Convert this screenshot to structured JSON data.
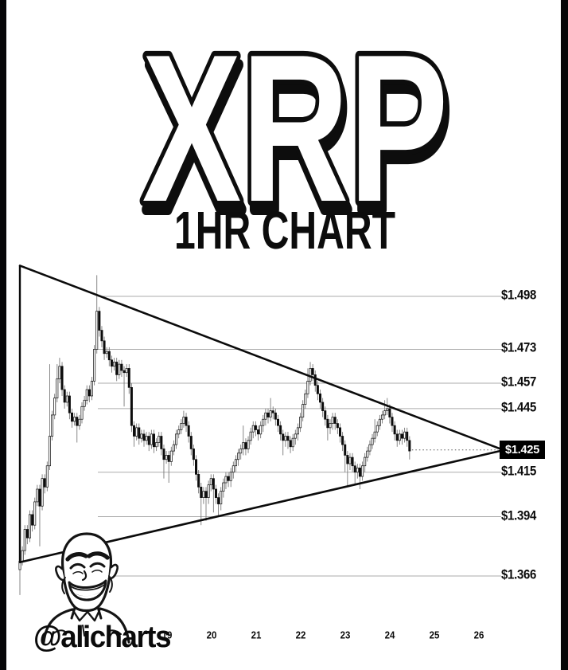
{
  "header": {
    "title": "XRP",
    "subtitle": "1HR CHART"
  },
  "footer": {
    "handle": "@alicharts"
  },
  "colors": {
    "background": "#ffffff",
    "edge_bars": "#060608",
    "ink": "#0c0c0c",
    "grid": "#ababab",
    "wick": "#7a7a7a",
    "candle_up": "#ffffff",
    "candle_down": "#0c0c0c",
    "apex_box_bg": "#000000",
    "apex_box_text": "#ffffff"
  },
  "chart_data": {
    "type": "candlestick",
    "title": "XRP 1HR CHART",
    "symbol": "XRP",
    "timeframe": "1HR",
    "pattern": "symmetrical triangle (converging trendlines to apex at $1.425)",
    "ylim": [
      1.35,
      1.515
    ],
    "grid": true,
    "price_levels": [
      {
        "label": "$1.498",
        "price": 1.498,
        "highlighted": false
      },
      {
        "label": "$1.473",
        "price": 1.473,
        "highlighted": false
      },
      {
        "label": "$1.457",
        "price": 1.457,
        "highlighted": false
      },
      {
        "label": "$1.445",
        "price": 1.445,
        "highlighted": false
      },
      {
        "label": "$1.425",
        "price": 1.425,
        "highlighted": true
      },
      {
        "label": "$1.415",
        "price": 1.415,
        "highlighted": false
      },
      {
        "label": "$1.394",
        "price": 1.394,
        "highlighted": false
      },
      {
        "label": "$1.366",
        "price": 1.366,
        "highlighted": false
      }
    ],
    "x_ticks": [
      "19",
      "20",
      "21",
      "22",
      "23",
      "24",
      "25",
      "26"
    ],
    "triangle": {
      "upper_start": 1.5125,
      "lower_start": 1.3725,
      "apex": 1.4255
    },
    "last_price": 1.425,
    "candles": {
      "first_open": 1.369,
      "format": "[close, high, low] — open equals previous close",
      "series": [
        [
          1.373,
          1.376,
          1.357
        ],
        [
          1.378,
          1.38,
          1.371
        ],
        [
          1.388,
          1.39,
          1.376
        ],
        [
          1.384,
          1.39,
          1.381
        ],
        [
          1.395,
          1.397,
          1.382
        ],
        [
          1.39,
          1.397,
          1.387
        ],
        [
          1.401,
          1.403,
          1.388
        ],
        [
          1.407,
          1.409,
          1.399
        ],
        [
          1.399,
          1.409,
          1.38
        ],
        [
          1.412,
          1.414,
          1.397
        ],
        [
          1.408,
          1.414,
          1.405
        ],
        [
          1.418,
          1.42,
          1.406
        ],
        [
          1.432,
          1.466,
          1.416
        ],
        [
          1.442,
          1.444,
          1.43
        ],
        [
          1.45,
          1.452,
          1.44
        ],
        [
          1.459,
          1.466,
          1.448
        ],
        [
          1.465,
          1.469,
          1.457
        ],
        [
          1.454,
          1.467,
          1.451
        ],
        [
          1.448,
          1.456,
          1.445
        ],
        [
          1.451,
          1.453,
          1.446
        ],
        [
          1.443,
          1.453,
          1.44
        ],
        [
          1.439,
          1.445,
          1.436
        ],
        [
          1.441,
          1.443,
          1.437
        ],
        [
          1.437,
          1.443,
          1.429
        ],
        [
          1.44,
          1.442,
          1.435
        ],
        [
          1.446,
          1.448,
          1.438
        ],
        [
          1.449,
          1.451,
          1.444
        ],
        [
          1.454,
          1.456,
          1.447
        ],
        [
          1.451,
          1.456,
          1.448
        ],
        [
          1.458,
          1.46,
          1.449
        ],
        [
          1.473,
          1.475,
          1.456
        ],
        [
          1.491,
          1.508,
          1.471
        ],
        [
          1.482,
          1.493,
          1.479
        ],
        [
          1.477,
          1.484,
          1.474
        ],
        [
          1.471,
          1.479,
          1.468
        ],
        [
          1.472,
          1.474,
          1.469
        ],
        [
          1.468,
          1.474,
          1.465
        ],
        [
          1.465,
          1.47,
          1.462
        ],
        [
          1.467,
          1.469,
          1.463
        ],
        [
          1.461,
          1.469,
          1.458
        ],
        [
          1.466,
          1.468,
          1.459
        ],
        [
          1.463,
          1.468,
          1.46
        ],
        [
          1.462,
          1.465,
          1.446
        ],
        [
          1.464,
          1.466,
          1.46
        ],
        [
          1.455,
          1.466,
          1.452
        ],
        [
          1.437,
          1.457,
          1.434
        ],
        [
          1.432,
          1.439,
          1.427
        ],
        [
          1.436,
          1.438,
          1.43
        ],
        [
          1.431,
          1.438,
          1.428
        ],
        [
          1.433,
          1.435,
          1.429
        ],
        [
          1.43,
          1.435,
          1.427
        ],
        [
          1.432,
          1.434,
          1.428
        ],
        [
          1.428,
          1.434,
          1.425
        ],
        [
          1.433,
          1.435,
          1.426
        ],
        [
          1.427,
          1.435,
          1.424
        ],
        [
          1.429,
          1.431,
          1.425
        ],
        [
          1.432,
          1.434,
          1.427
        ],
        [
          1.426,
          1.434,
          1.423
        ],
        [
          1.421,
          1.428,
          1.412
        ],
        [
          1.423,
          1.425,
          1.419
        ],
        [
          1.42,
          1.425,
          1.41
        ],
        [
          1.425,
          1.427,
          1.418
        ],
        [
          1.428,
          1.43,
          1.423
        ],
        [
          1.433,
          1.435,
          1.426
        ],
        [
          1.435,
          1.437,
          1.431
        ],
        [
          1.438,
          1.44,
          1.433
        ],
        [
          1.441,
          1.444,
          1.436
        ],
        [
          1.437,
          1.443,
          1.434
        ],
        [
          1.432,
          1.439,
          1.429
        ],
        [
          1.426,
          1.434,
          1.423
        ],
        [
          1.421,
          1.428,
          1.418
        ],
        [
          1.414,
          1.423,
          1.411
        ],
        [
          1.408,
          1.416,
          1.405
        ],
        [
          1.403,
          1.41,
          1.39
        ],
        [
          1.406,
          1.408,
          1.4
        ],
        [
          1.403,
          1.408,
          1.392
        ],
        [
          1.409,
          1.411,
          1.4
        ],
        [
          1.412,
          1.414,
          1.406
        ],
        [
          1.407,
          1.414,
          1.396
        ],
        [
          1.403,
          1.409,
          1.4
        ],
        [
          1.4,
          1.405,
          1.394
        ],
        [
          1.406,
          1.408,
          1.397
        ],
        [
          1.41,
          1.412,
          1.403
        ],
        [
          1.413,
          1.415,
          1.407
        ],
        [
          1.411,
          1.415,
          1.408
        ],
        [
          1.415,
          1.417,
          1.408
        ],
        [
          1.418,
          1.42,
          1.412
        ],
        [
          1.421,
          1.423,
          1.415
        ],
        [
          1.424,
          1.426,
          1.418
        ],
        [
          1.426,
          1.428,
          1.421
        ],
        [
          1.429,
          1.437,
          1.423
        ],
        [
          1.426,
          1.431,
          1.423
        ],
        [
          1.43,
          1.432,
          1.424
        ],
        [
          1.434,
          1.436,
          1.428
        ],
        [
          1.437,
          1.439,
          1.431
        ],
        [
          1.435,
          1.439,
          1.432
        ],
        [
          1.433,
          1.437,
          1.43
        ],
        [
          1.437,
          1.439,
          1.431
        ],
        [
          1.44,
          1.442,
          1.434
        ],
        [
          1.443,
          1.445,
          1.437
        ],
        [
          1.441,
          1.445,
          1.438
        ],
        [
          1.444,
          1.45,
          1.439
        ],
        [
          1.443,
          1.446,
          1.44
        ],
        [
          1.44,
          1.445,
          1.437
        ],
        [
          1.437,
          1.442,
          1.434
        ],
        [
          1.433,
          1.439,
          1.43
        ],
        [
          1.43,
          1.435,
          1.423
        ],
        [
          1.432,
          1.434,
          1.427
        ],
        [
          1.43,
          1.434,
          1.426
        ],
        [
          1.427,
          1.432,
          1.424
        ],
        [
          1.431,
          1.433,
          1.425
        ],
        [
          1.433,
          1.435,
          1.428
        ],
        [
          1.436,
          1.438,
          1.43
        ],
        [
          1.441,
          1.443,
          1.434
        ],
        [
          1.447,
          1.449,
          1.439
        ],
        [
          1.452,
          1.454,
          1.445
        ],
        [
          1.458,
          1.464,
          1.45
        ],
        [
          1.464,
          1.467,
          1.456
        ],
        [
          1.461,
          1.466,
          1.458
        ],
        [
          1.456,
          1.463,
          1.453
        ],
        [
          1.452,
          1.458,
          1.449
        ],
        [
          1.448,
          1.454,
          1.445
        ],
        [
          1.444,
          1.45,
          1.441
        ],
        [
          1.44,
          1.446,
          1.437
        ],
        [
          1.436,
          1.442,
          1.43
        ],
        [
          1.438,
          1.44,
          1.433
        ],
        [
          1.441,
          1.443,
          1.435
        ],
        [
          1.438,
          1.443,
          1.435
        ],
        [
          1.436,
          1.44,
          1.433
        ],
        [
          1.432,
          1.438,
          1.429
        ],
        [
          1.428,
          1.434,
          1.425
        ],
        [
          1.423,
          1.43,
          1.415
        ],
        [
          1.419,
          1.425,
          1.408
        ],
        [
          1.422,
          1.424,
          1.416
        ],
        [
          1.418,
          1.424,
          1.415
        ],
        [
          1.415,
          1.42,
          1.409
        ],
        [
          1.417,
          1.419,
          1.412
        ],
        [
          1.413,
          1.419,
          1.407
        ],
        [
          1.418,
          1.42,
          1.411
        ],
        [
          1.422,
          1.424,
          1.415
        ],
        [
          1.425,
          1.427,
          1.42
        ],
        [
          1.428,
          1.43,
          1.423
        ],
        [
          1.431,
          1.433,
          1.426
        ],
        [
          1.434,
          1.44,
          1.429
        ],
        [
          1.437,
          1.439,
          1.432
        ],
        [
          1.44,
          1.442,
          1.435
        ],
        [
          1.442,
          1.444,
          1.438
        ],
        [
          1.444,
          1.449,
          1.44
        ],
        [
          1.445,
          1.45,
          1.442
        ],
        [
          1.441,
          1.447,
          1.438
        ],
        [
          1.437,
          1.443,
          1.434
        ],
        [
          1.433,
          1.439,
          1.43
        ],
        [
          1.43,
          1.435,
          1.427
        ],
        [
          1.433,
          1.435,
          1.428
        ],
        [
          1.431,
          1.435,
          1.428
        ],
        [
          1.434,
          1.436,
          1.429
        ],
        [
          1.43,
          1.436,
          1.427
        ],
        [
          1.425,
          1.432,
          1.421
        ]
      ]
    }
  }
}
